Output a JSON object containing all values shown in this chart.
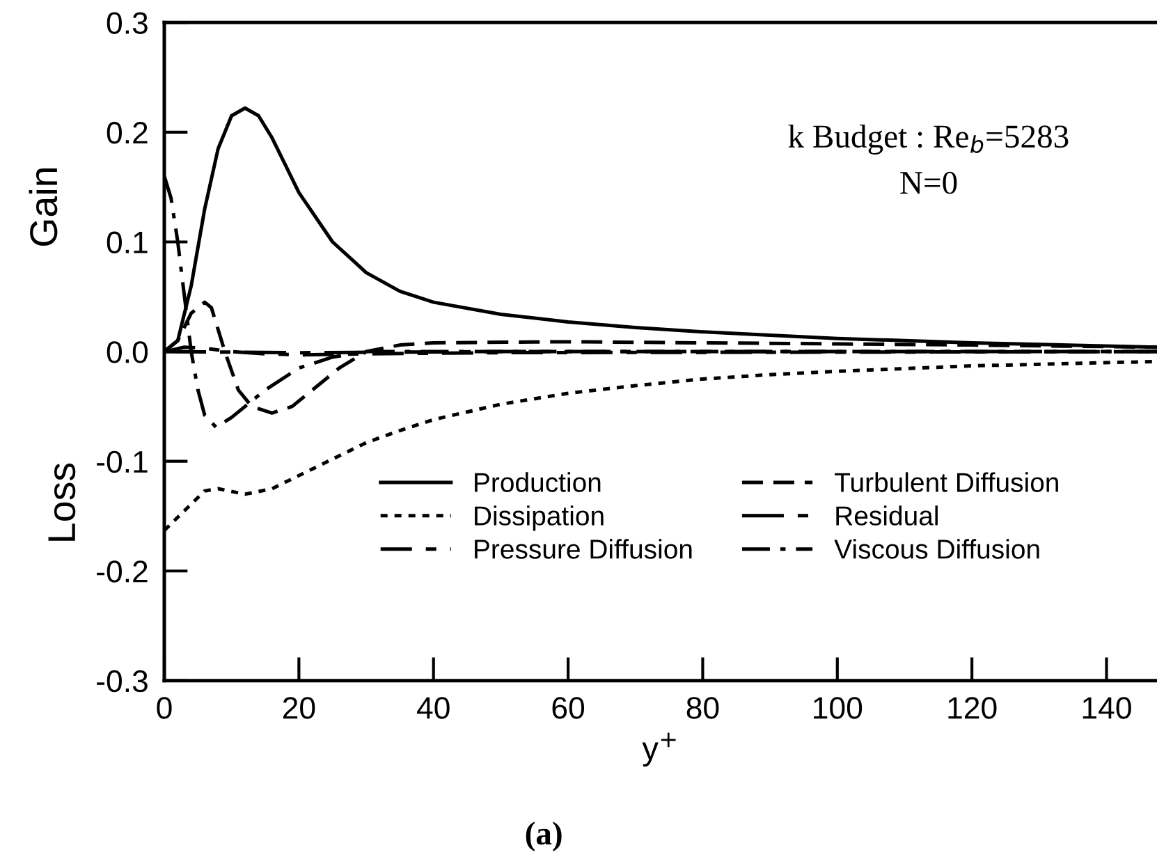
{
  "chart_data": {
    "type": "line",
    "xlabel": "y$^{+}$",
    "ylabel": "Gain",
    "annotations": [
      "Loss",
      "k Budget : Re$_{b}$=5283",
      "N=0",
      "(a)"
    ],
    "xlim": [
      0,
      147.5
    ],
    "ylim": [
      -0.3,
      0.3
    ],
    "xticks": [
      0,
      20,
      40,
      60,
      80,
      100,
      120,
      140
    ],
    "yticks": [
      {
        "value": -0.3,
        "label": "-0.3"
      },
      {
        "value": -0.2,
        "label": "-0.2"
      },
      {
        "value": -0.1,
        "label": "-0.1"
      },
      {
        "value": 0.0,
        "label": "0.0"
      },
      {
        "value": 0.1,
        "label": "0.1"
      },
      {
        "value": 0.2,
        "label": "0.2"
      },
      {
        "value": 0.3,
        "label": "0.3"
      }
    ],
    "grid": false,
    "legend": "bottom",
    "marker": "none",
    "series": [
      {
        "name": "Production",
        "color": "#000000",
        "line_style": "solid",
        "x": [
          0,
          2,
          4,
          6,
          8,
          10,
          12,
          14,
          16,
          18,
          20,
          25,
          30,
          35,
          40,
          50,
          60,
          70,
          80,
          90,
          100,
          120,
          147.5
        ],
        "values": [
          0,
          0.01,
          0.06,
          0.13,
          0.185,
          0.215,
          0.222,
          0.215,
          0.195,
          0.17,
          0.145,
          0.1,
          0.072,
          0.055,
          0.045,
          0.034,
          0.027,
          0.022,
          0.018,
          0.015,
          0.012,
          0.008,
          0.004
        ]
      },
      {
        "name": "Dissipation",
        "color": "#000000",
        "line_style": "dotted",
        "x": [
          0,
          3,
          6,
          8,
          12,
          16,
          20,
          25,
          30,
          35,
          40,
          50,
          60,
          70,
          80,
          90,
          100,
          120,
          147.5
        ],
        "values": [
          -0.163,
          -0.145,
          -0.127,
          -0.125,
          -0.13,
          -0.125,
          -0.113,
          -0.098,
          -0.083,
          -0.072,
          -0.062,
          -0.048,
          -0.038,
          -0.031,
          -0.025,
          -0.021,
          -0.018,
          -0.013,
          -0.009
        ]
      },
      {
        "name": "Pressure Diffusion",
        "color": "#000000",
        "line_style": "longshort",
        "x": [
          0,
          3,
          6,
          10,
          15,
          20,
          30,
          50,
          147.5
        ],
        "values": [
          0,
          0.004,
          0.003,
          0.0,
          -0.002,
          -0.003,
          -0.002,
          -0.001,
          0.0
        ]
      },
      {
        "name": "Turbulent Diffusion",
        "color": "#000000",
        "line_style": "dashed",
        "x": [
          0,
          2,
          4,
          6,
          7,
          9,
          11,
          13,
          16,
          19,
          22,
          26,
          30,
          35,
          40,
          60,
          80,
          100,
          120,
          147.5
        ],
        "values": [
          0,
          0.01,
          0.035,
          0.045,
          0.04,
          0.0,
          -0.035,
          -0.05,
          -0.056,
          -0.05,
          -0.035,
          -0.015,
          0.0,
          0.006,
          0.008,
          0.009,
          0.008,
          0.007,
          0.006,
          0.004
        ]
      },
      {
        "name": "Residual",
        "color": "#000000",
        "line_style": "longdashshort",
        "x": [
          0,
          20,
          50,
          100,
          147.5
        ],
        "values": [
          0,
          -0.001,
          0,
          0,
          0
        ]
      },
      {
        "name": "Viscous Diffusion",
        "color": "#000000",
        "line_style": "dashdot",
        "x": [
          0,
          1,
          2,
          3,
          4,
          5,
          6,
          7.7,
          10,
          12,
          15,
          20,
          25,
          30,
          147.5
        ],
        "values": [
          0.16,
          0.14,
          0.1,
          0.05,
          0.0,
          -0.035,
          -0.058,
          -0.069,
          -0.06,
          -0.05,
          -0.035,
          -0.015,
          -0.005,
          0,
          0
        ]
      }
    ]
  }
}
